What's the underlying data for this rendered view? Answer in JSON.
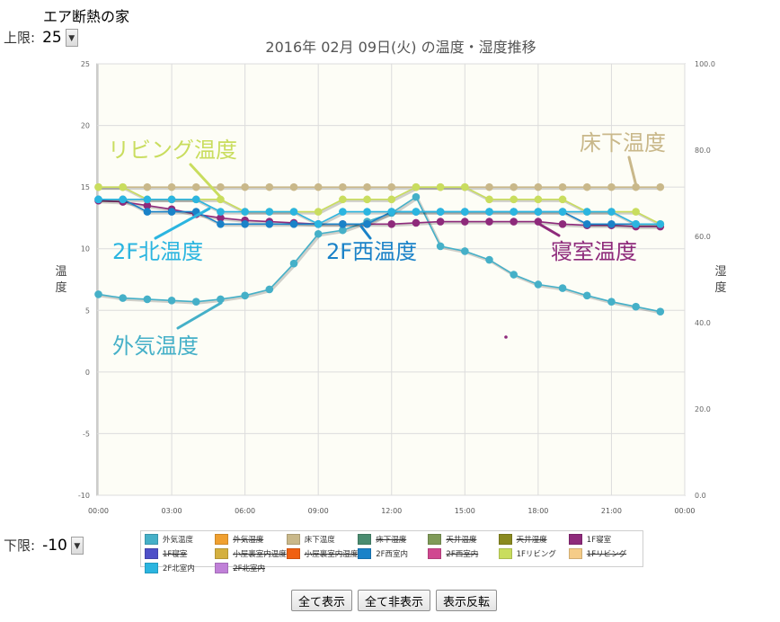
{
  "page": {
    "title": "エア断熱の家"
  },
  "upper_limit": {
    "label": "上限:",
    "value": "25"
  },
  "lower_limit": {
    "label": "下限:",
    "value": "-10"
  },
  "buttons": {
    "show_all": "全て表示",
    "hide_all": "全て非表示",
    "invert": "表示反転"
  },
  "chart_data": {
    "type": "line",
    "title": "2016年 02月 09日(火) の温度・湿度推移",
    "ylabel": "温度",
    "y2label": "湿度",
    "ylim": [
      -10,
      25
    ],
    "y2lim": [
      0,
      100
    ],
    "yticks": [
      "-10",
      "-5",
      "0",
      "5",
      "10",
      "15",
      "20",
      "25"
    ],
    "y2ticks": [
      "0.0",
      "20.0",
      "40.0",
      "60.0",
      "80.0",
      "100.0"
    ],
    "xticks": [
      "00:00",
      "03:00",
      "06:00",
      "09:00",
      "12:00",
      "15:00",
      "18:00",
      "21:00",
      "00:00"
    ],
    "grid": true,
    "x_hours": [
      0,
      1,
      2,
      3,
      4,
      5,
      6,
      7,
      8,
      9,
      10,
      11,
      12,
      13,
      14,
      15,
      16,
      17,
      18,
      19,
      20,
      21,
      22,
      23
    ],
    "series": [
      {
        "name": "外気温度",
        "color": "#45b0c8",
        "values": [
          6.3,
          6.0,
          5.9,
          5.8,
          5.7,
          5.9,
          6.2,
          6.7,
          8.8,
          11.2,
          11.5,
          12.2,
          12.9,
          14.2,
          10.2,
          9.8,
          9.1,
          7.9,
          7.1,
          6.8,
          6.2,
          5.7,
          5.3,
          4.9
        ]
      },
      {
        "name": "床下温度",
        "color": "#c9b88a",
        "values": [
          15,
          15,
          15,
          15,
          15,
          15,
          15,
          15,
          15,
          15,
          15,
          15,
          15,
          15,
          15,
          15,
          15,
          15,
          15,
          15,
          15,
          15,
          15,
          15
        ]
      },
      {
        "name": "1F寝室",
        "color": "#8e2a7b",
        "values": [
          13.9,
          13.8,
          13.5,
          13.2,
          12.8,
          12.5,
          12.3,
          12.2,
          12.1,
          12.0,
          12.0,
          12.0,
          12.0,
          12.1,
          12.2,
          12.2,
          12.2,
          12.2,
          12.2,
          12.0,
          11.9,
          11.9,
          11.8,
          11.8
        ]
      },
      {
        "name": "2F西室内",
        "color": "#1a82c8",
        "values": [
          14,
          14,
          13,
          13,
          13,
          12,
          12,
          12,
          12,
          12,
          12,
          12,
          13,
          13,
          13,
          13,
          13,
          13,
          13,
          13,
          12,
          12,
          12,
          12
        ]
      },
      {
        "name": "1Fリビング",
        "color": "#c9dd5e",
        "values": [
          15,
          15,
          14,
          14,
          14,
          14,
          13,
          13,
          13,
          13,
          14,
          14,
          14,
          15,
          15,
          15,
          14,
          14,
          14,
          14,
          13,
          13,
          13,
          12
        ]
      },
      {
        "name": "2F北室内",
        "color": "#2bb5e0",
        "values": [
          14,
          14,
          14,
          14,
          14,
          13,
          13,
          13,
          13,
          12,
          13,
          13,
          13,
          13,
          13,
          13,
          13,
          13,
          13,
          13,
          13,
          13,
          12,
          12
        ]
      }
    ],
    "annotations": [
      {
        "text": "リビング温度",
        "color": "#c9dd5e",
        "series": "1Fリビング"
      },
      {
        "text": "床下温度",
        "color": "#c9b88a",
        "series": "床下温度"
      },
      {
        "text": "2F北温度",
        "color": "#2bb5e0",
        "series": "2F北室内"
      },
      {
        "text": "2F西温度",
        "color": "#1a82c8",
        "series": "2F西室内"
      },
      {
        "text": "寝室温度",
        "color": "#8e2a7b",
        "series": "1F寝室"
      },
      {
        "text": "外気温度",
        "color": "#45b0c8",
        "series": "外気温度"
      }
    ],
    "legend_placement": "bottom",
    "legend": [
      {
        "label": "外気温度",
        "color": "#45b0c8",
        "on": true
      },
      {
        "label": "外気湿度",
        "color": "#f0a030",
        "on": false
      },
      {
        "label": "床下温度",
        "color": "#c9b88a",
        "on": true
      },
      {
        "label": "床下湿度",
        "color": "#4a8c70",
        "on": false
      },
      {
        "label": "天井温度",
        "color": "#7f9a58",
        "on": false
      },
      {
        "label": "天井湿度",
        "color": "#8a8a20",
        "on": false
      },
      {
        "label": "1F寝室",
        "color": "#8e2a7b",
        "on": true
      },
      {
        "label": "1F寝室",
        "color": "#4e50c8",
        "on": false
      },
      {
        "label": "小屋裏室内温度",
        "color": "#d4b040",
        "on": false
      },
      {
        "label": "小屋裏室内湿度",
        "color": "#f06010",
        "on": false
      },
      {
        "label": "2F西室内",
        "color": "#1a82c8",
        "on": true
      },
      {
        "label": "2F西室内",
        "color": "#d04890",
        "on": false
      },
      {
        "label": "1Fリビング",
        "color": "#c9dd5e",
        "on": true
      },
      {
        "label": "1Fリビング",
        "color": "#f5cc88",
        "on": false
      },
      {
        "label": "2F北室内",
        "color": "#2bb5e0",
        "on": true
      },
      {
        "label": "2F北室内",
        "color": "#c080d8",
        "on": false
      }
    ]
  }
}
